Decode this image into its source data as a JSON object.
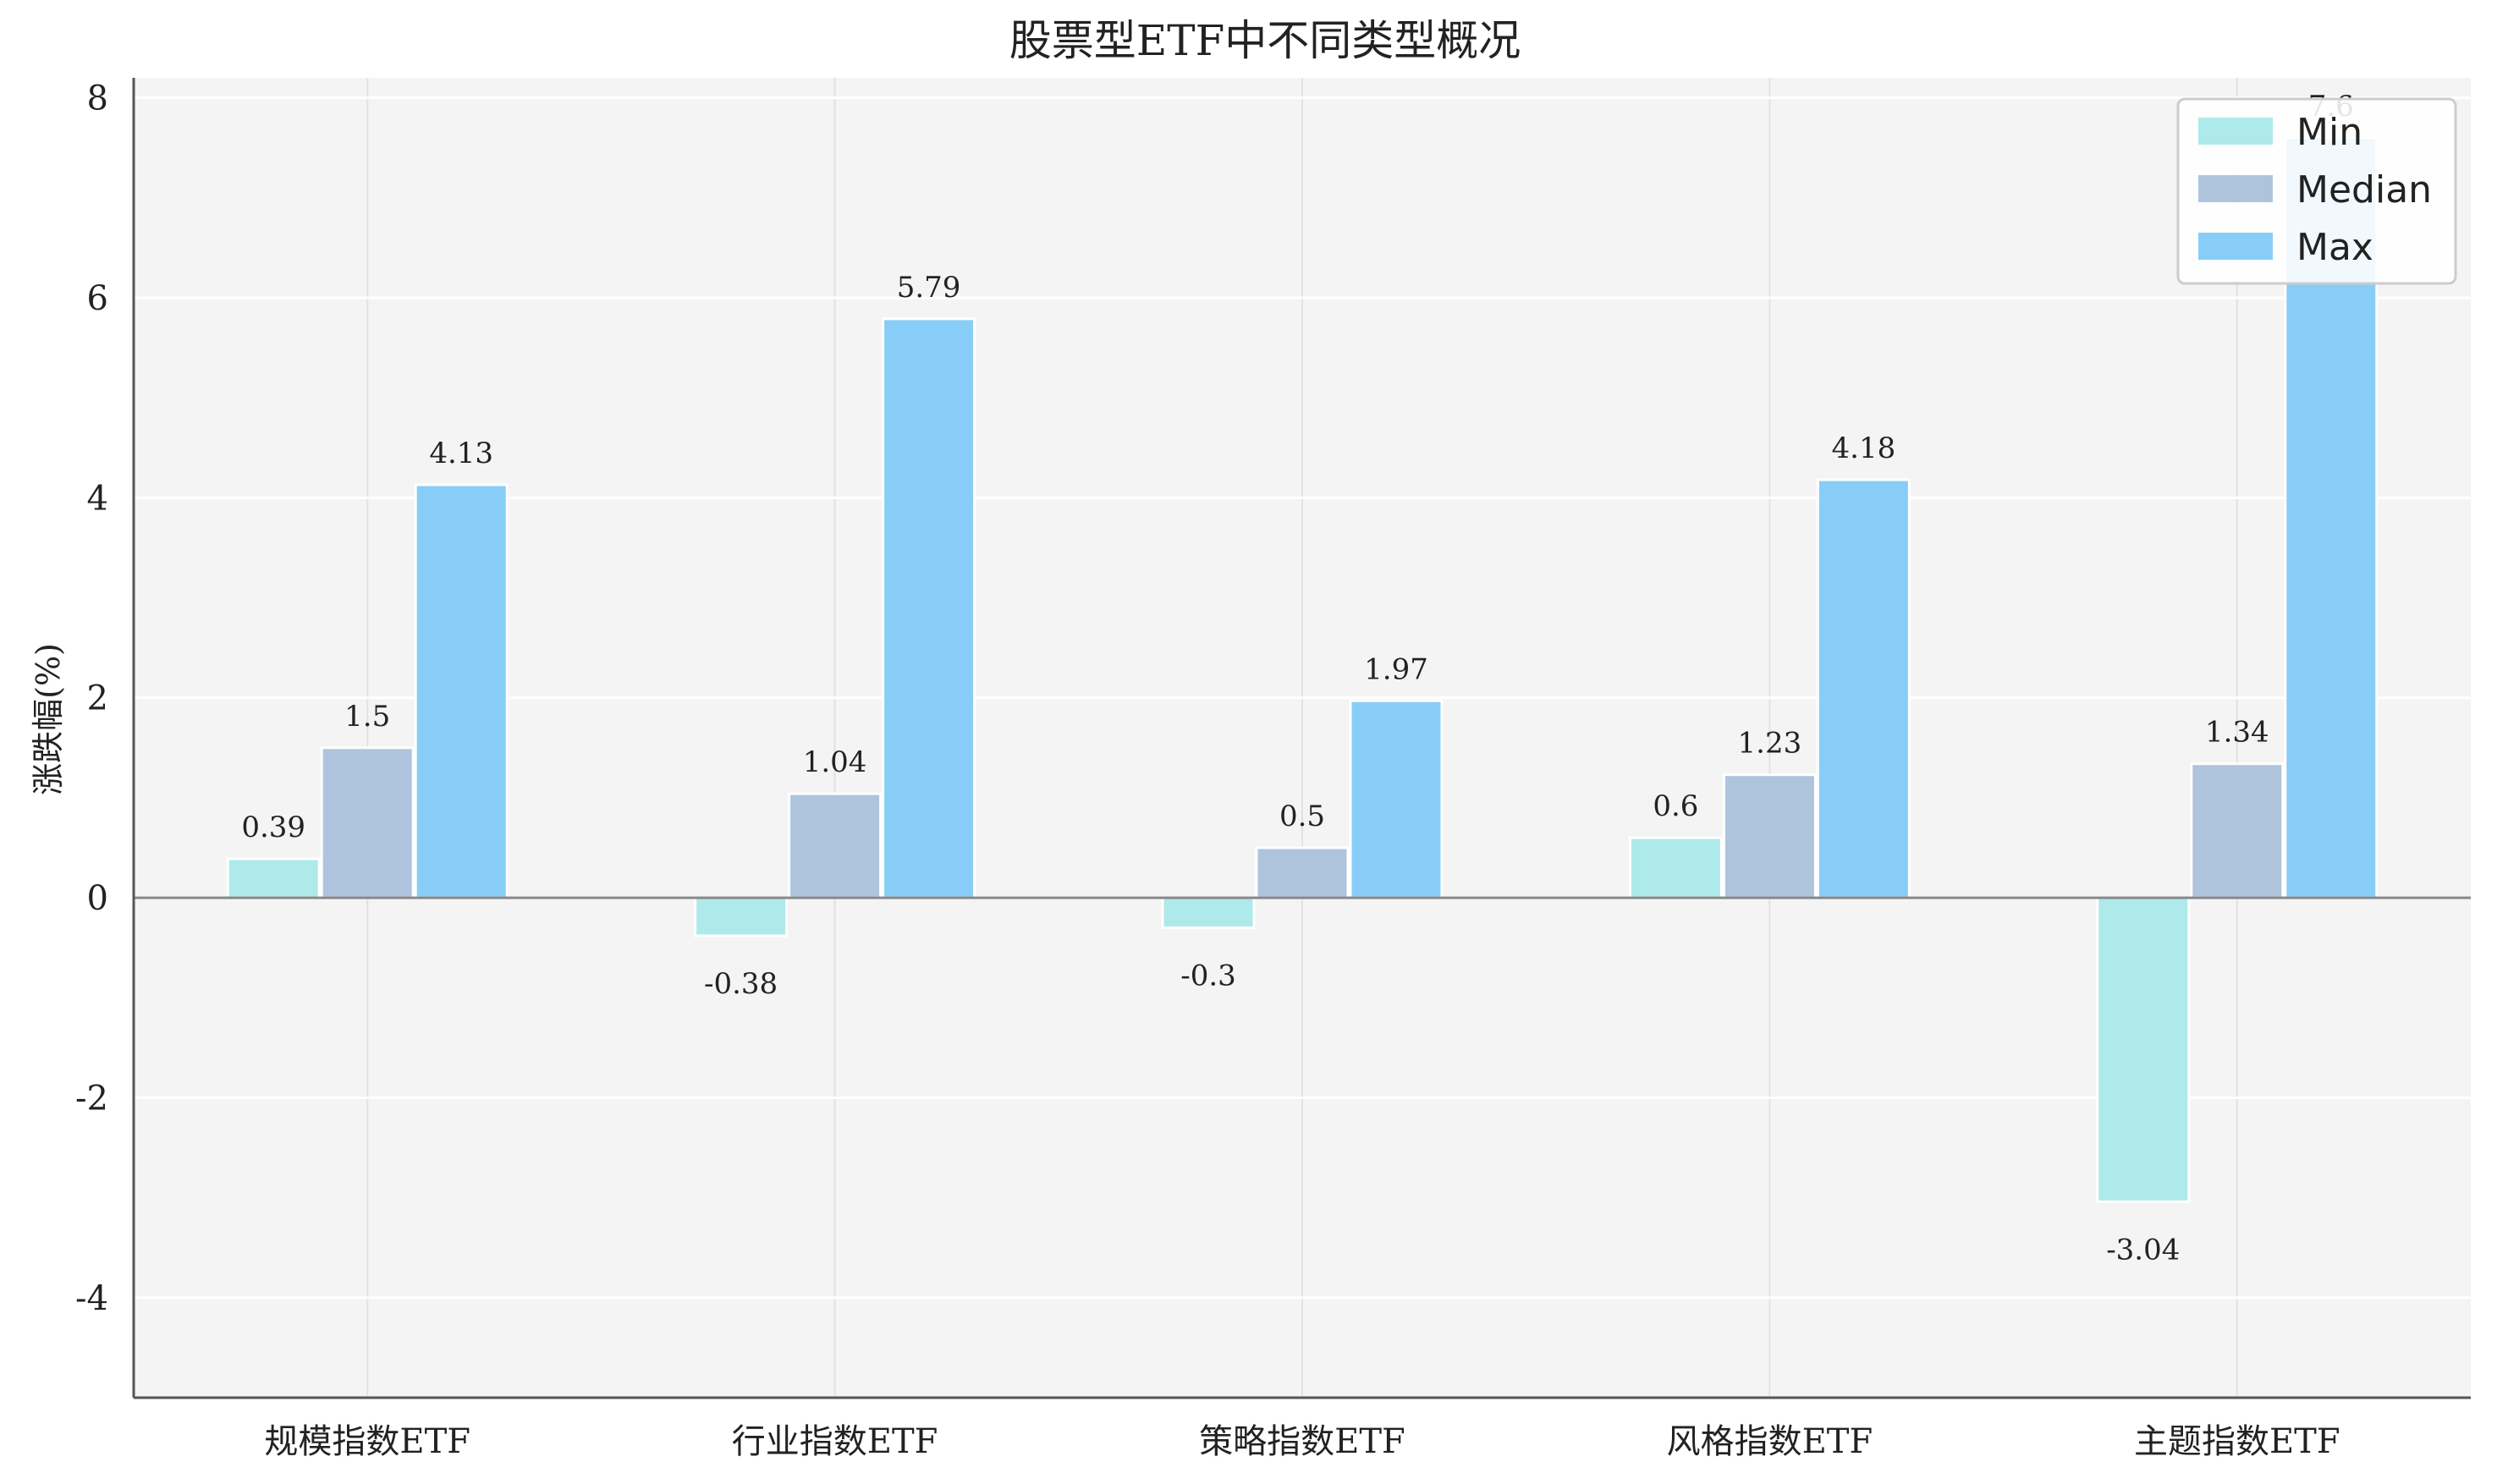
{
  "chart_data": {
    "type": "bar",
    "title": "股票型ETF中不同类型概况",
    "xlabel": "",
    "ylabel": "涨跌幅(%)",
    "categories": [
      "规模指数ETF",
      "行业指数ETF",
      "策略指数ETF",
      "风格指数ETF",
      "主题指数ETF"
    ],
    "series": [
      {
        "name": "Min",
        "color": "#aeeaea",
        "values": [
          0.39,
          -0.38,
          -0.3,
          0.6,
          -3.04
        ]
      },
      {
        "name": "Median",
        "color": "#aec4dd",
        "values": [
          1.5,
          1.04,
          0.5,
          1.23,
          1.34
        ]
      },
      {
        "name": "Max",
        "color": "#88cdf8",
        "values": [
          4.13,
          5.79,
          1.97,
          4.18,
          7.6
        ]
      }
    ],
    "ylim": [
      -5,
      8.2
    ],
    "yticks": [
      -4,
      -2,
      0,
      2,
      4,
      6,
      8
    ],
    "ytick_labels": [
      "-4",
      "-2",
      "0",
      "2",
      "4",
      "6",
      "8"
    ],
    "grid": true,
    "legend_position": "top-right",
    "plot_background": "#f4f4f4",
    "zero_line_color": "#888888"
  }
}
